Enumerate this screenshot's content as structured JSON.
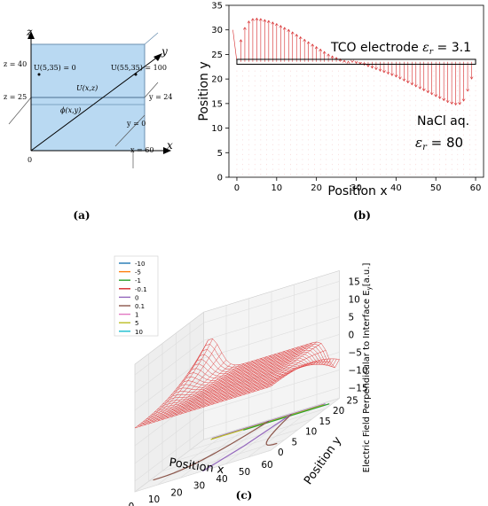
{
  "figure": {
    "panel_labels": {
      "a": "(a)",
      "b": "(b)",
      "c": "(c)"
    }
  },
  "panel_a": {
    "axis_z": "z",
    "axis_y": "y",
    "axis_x": "x",
    "origin": "0",
    "z40": "z = 40",
    "z25": "z = 25",
    "y24": "y = 24",
    "y0": "y = 0",
    "x60": "x = 60",
    "u_left": "U(5,35) = 0",
    "u_right": "U(55,35) = 100",
    "u_xz": "U(x,z)",
    "phi": "ϕ(x,y)",
    "colors": {
      "box_fill": "#b9d9f2",
      "box_stroke": "#6a8fb0"
    }
  },
  "chart_data": [
    {
      "panel": "b",
      "type": "scatter",
      "plot_kind": "quiver",
      "xlabel": "Position x",
      "ylabel": "Position y",
      "xlim": [
        -2,
        62
      ],
      "ylim": [
        0,
        35
      ],
      "xticks": [
        "0",
        "10",
        "20",
        "30",
        "40",
        "50",
        "60"
      ],
      "yticks": [
        "0",
        "5",
        "10",
        "15",
        "20",
        "25",
        "30",
        "35"
      ],
      "tco_label_prefix": "TCO electrode",
      "tco_eps": "ε",
      "tco_eps_sub": "r",
      "tco_eps_val": " = 3.1",
      "nacl_label": "NaCl aq.",
      "nacl_eps": "ε",
      "nacl_eps_sub": "r",
      "nacl_eps_val": " = 80",
      "electrode": {
        "x": [
          0,
          60
        ],
        "y": [
          23,
          24
        ]
      },
      "arrow_color": "#d62728",
      "arrows_x": [
        1,
        2,
        3,
        4,
        5,
        6,
        7,
        8,
        9,
        10,
        11,
        12,
        13,
        14,
        15,
        16,
        17,
        18,
        19,
        20,
        21,
        22,
        23,
        24,
        25,
        26,
        27,
        28,
        29,
        30,
        31,
        32,
        33,
        34,
        35,
        36,
        37,
        38,
        39,
        40,
        41,
        42,
        43,
        44,
        45,
        46,
        47,
        48,
        49,
        50,
        51,
        52,
        53,
        54,
        55,
        56,
        57,
        58,
        59
      ],
      "arrows_y_top": [
        28,
        30.5,
        31.8,
        32.3,
        32.4,
        32.3,
        32.1,
        31.9,
        31.6,
        31.3,
        30.9,
        30.5,
        30.1,
        29.6,
        29.1,
        28.6,
        28.1,
        27.6,
        27.1,
        26.6,
        26.1,
        25.6,
        25.1,
        24.7,
        24.4,
        24.1,
        23.8,
        23.6,
        23.4,
        23.2,
        23.0,
        22.8,
        22.5,
        22.2,
        21.9,
        21.6,
        21.3,
        21.0,
        20.7,
        20.4,
        20.0,
        19.6,
        19.2,
        18.8,
        18.4,
        18.0,
        17.6,
        17.2,
        16.8,
        16.4,
        16.0,
        15.6,
        15.2,
        14.9,
        14.7,
        14.8,
        15.5,
        17.5,
        20.0
      ]
    },
    {
      "panel": "c",
      "type": "line",
      "plot_kind": "3d-wireframe",
      "xlabel": "Position x",
      "ylabel": "Position y",
      "zlabel": "Electric Field Perpendicular to Interface E",
      "zlabel_sub": "y",
      "zlabel_unit": "[a.u.]",
      "xticks": [
        "0",
        "10",
        "20",
        "30",
        "40",
        "50",
        "60"
      ],
      "yticks": [
        "0",
        "5",
        "10",
        "15",
        "20",
        "25"
      ],
      "zticks": [
        "15",
        "10",
        "5",
        "0",
        "−5",
        "−10",
        "−15"
      ],
      "legend_placement": "top-left",
      "legend": [
        {
          "label": "-10",
          "color": "#1f77b4"
        },
        {
          "label": "-5",
          "color": "#ff7f0e"
        },
        {
          "label": "-1",
          "color": "#2ca02c"
        },
        {
          "label": "-0.1",
          "color": "#d62728"
        },
        {
          "label": "0",
          "color": "#9467bd"
        },
        {
          "label": "0.1",
          "color": "#8c564b"
        },
        {
          "label": "1",
          "color": "#e377c2"
        },
        {
          "label": "5",
          "color": "#bcbd22"
        },
        {
          "label": "10",
          "color": "#17becf"
        }
      ],
      "surface_color": "#e04040"
    }
  ]
}
